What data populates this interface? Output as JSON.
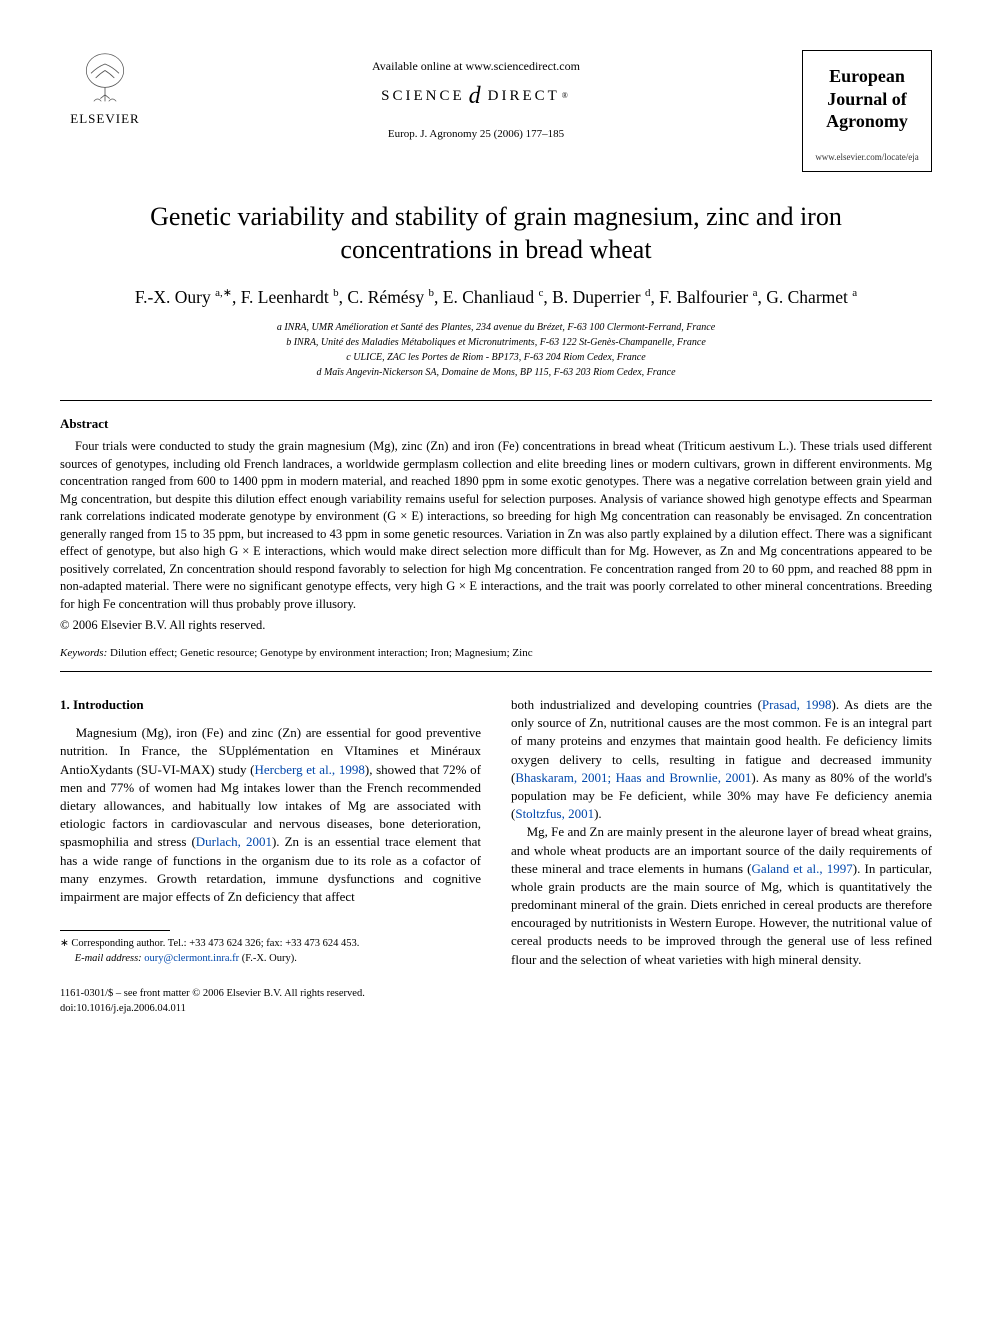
{
  "header": {
    "available_online": "Available online at www.sciencedirect.com",
    "sciencedirect": {
      "left": "SCIENCE",
      "right": "DIRECT"
    },
    "journal_ref": "Europ. J. Agronomy 25 (2006) 177–185",
    "publisher_name": "ELSEVIER",
    "journal_box_title": "European Journal of Agronomy",
    "journal_url": "www.elsevier.com/locate/eja"
  },
  "article": {
    "title": "Genetic variability and stability of grain magnesium, zinc and iron concentrations in bread wheat",
    "authors_html": "F.-X. Oury <sup>a,∗</sup>, F. Leenhardt <sup>b</sup>, C. Rémésy <sup>b</sup>, E. Chanliaud <sup>c</sup>, B. Duperrier <sup>d</sup>, F. Balfourier <sup>a</sup>, G. Charmet <sup>a</sup>",
    "affiliations": [
      "a INRA, UMR Amélioration et Santé des Plantes, 234 avenue du Brézet, F-63 100 Clermont-Ferrand, France",
      "b INRA, Unité des Maladies Métaboliques et Micronutriments, F-63 122 St-Genès-Champanelle, France",
      "c ULICE, ZAC les Portes de Riom - BP173, F-63 204 Riom Cedex, France",
      "d Maïs Angevin-Nickerson SA, Domaine de Mons, BP 115, F-63 203 Riom Cedex, France"
    ]
  },
  "abstract": {
    "heading": "Abstract",
    "body": "Four trials were conducted to study the grain magnesium (Mg), zinc (Zn) and iron (Fe) concentrations in bread wheat (Triticum aestivum L.). These trials used different sources of genotypes, including old French landraces, a worldwide germplasm collection and elite breeding lines or modern cultivars, grown in different environments. Mg concentration ranged from 600 to 1400 ppm in modern material, and reached 1890 ppm in some exotic genotypes. There was a negative correlation between grain yield and Mg concentration, but despite this dilution effect enough variability remains useful for selection purposes. Analysis of variance showed high genotype effects and Spearman rank correlations indicated moderate genotype by environment (G × E) interactions, so breeding for high Mg concentration can reasonably be envisaged. Zn concentration generally ranged from 15 to 35 ppm, but increased to 43 ppm in some genetic resources. Variation in Zn was also partly explained by a dilution effect. There was a significant effect of genotype, but also high G × E interactions, which would make direct selection more difficult than for Mg. However, as Zn and Mg concentrations appeared to be positively correlated, Zn concentration should respond favorably to selection for high Mg concentration. Fe concentration ranged from 20 to 60 ppm, and reached 88 ppm in non-adapted material. There were no significant genotype effects, very high G × E interactions, and the trait was poorly correlated to other mineral concentrations. Breeding for high Fe concentration will thus probably prove illusory.",
    "copyright": "© 2006 Elsevier B.V. All rights reserved."
  },
  "keywords": {
    "label": "Keywords:",
    "text": " Dilution effect; Genetic resource; Genotype by environment interaction; Iron; Magnesium; Zinc"
  },
  "body": {
    "section_heading": "1.  Introduction",
    "left_col_html": "Magnesium (Mg), iron (Fe) and zinc (Zn) are essential for good preventive nutrition. In France, the SUpplémentation en VItamines et Minéraux AntioXydants (SU-VI-MAX) study (<span class=\"cite\">Hercberg et al., 1998</span>), showed that 72% of men and 77% of women had Mg intakes lower than the French recommended dietary allowances, and habitually low intakes of Mg are associated with etiologic factors in cardiovascular and nervous diseases, bone deterioration, spasmophilia and stress (<span class=\"cite\">Durlach, 2001</span>). Zn is an essential trace element that has a wide range of functions in the organism due to its role as a cofactor of many enzymes. Growth retardation, immune dysfunctions and cognitive impairment are major effects of Zn deficiency that affect",
    "right_col_p1_html": "both industrialized and developing countries (<span class=\"cite\">Prasad, 1998</span>). As diets are the only source of Zn, nutritional causes are the most common. Fe is an integral part of many proteins and enzymes that maintain good health. Fe deficiency limits oxygen delivery to cells, resulting in fatigue and decreased immunity (<span class=\"cite\">Bhaskaram, 2001; Haas and Brownlie, 2001</span>). As many as 80% of the world's population may be Fe deficient, while 30% may have Fe deficiency anemia (<span class=\"cite\">Stoltzfus, 2001</span>).",
    "right_col_p2_html": "Mg, Fe and Zn are mainly present in the aleurone layer of bread wheat grains, and whole wheat products are an important source of the daily requirements of these mineral and trace elements in humans (<span class=\"cite\">Galand et al., 1997</span>). In particular, whole grain products are the main source of Mg, which is quantitatively the predominant mineral of the grain. Diets enriched in cereal products are therefore encouraged by nutritionists in Western Europe. However, the nutritional value of cereal products needs to be improved through the general use of less refined flour and the selection of wheat varieties with high mineral density."
  },
  "footnote": {
    "corresponding": "∗ Corresponding author. Tel.: +33 473 624 326; fax: +33 473 624 453.",
    "email_label": "E-mail address:",
    "email": " oury@clermont.inra.fr ",
    "email_suffix": "(F.-X. Oury)."
  },
  "footer": {
    "front_matter": "1161-0301/$ – see front matter © 2006 Elsevier B.V. All rights reserved.",
    "doi": "doi:10.1016/j.eja.2006.04.011"
  },
  "colors": {
    "citation": "#0047ab",
    "text": "#000000",
    "background": "#ffffff"
  }
}
